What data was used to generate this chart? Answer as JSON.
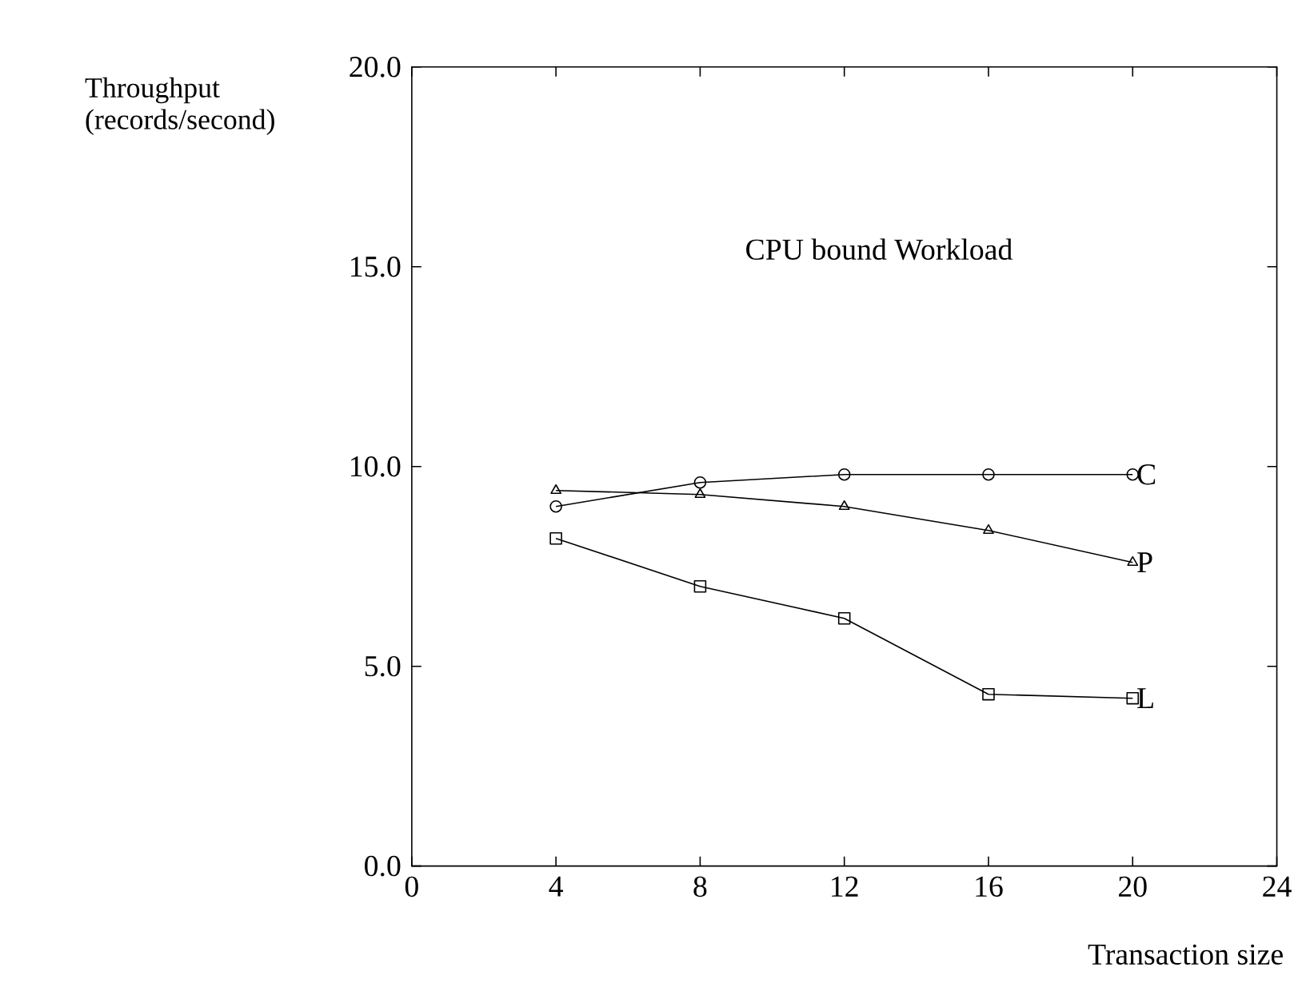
{
  "chart_data": {
    "type": "line",
    "title": "CPU bound Workload",
    "xlabel": "Transaction size",
    "ylabel": "Throughput (records/second)",
    "x": [
      4,
      8,
      12,
      16,
      20
    ],
    "xlim": [
      0,
      24
    ],
    "xticks": [
      0,
      4,
      8,
      12,
      16,
      20,
      24
    ],
    "ylim": [
      0,
      20
    ],
    "yticks": [
      {
        "value": 0,
        "label": "0.0"
      },
      {
        "value": 5,
        "label": "5.0"
      },
      {
        "value": 10,
        "label": "10.0"
      },
      {
        "value": 15,
        "label": "15.0"
      },
      {
        "value": 20,
        "label": "20.0"
      }
    ],
    "line_style": "solid",
    "series": [
      {
        "name": "C",
        "color": "#000000",
        "marker": "circle",
        "values": [
          9.0,
          9.6,
          9.8,
          9.8,
          9.8
        ]
      },
      {
        "name": "P",
        "color": "#000000",
        "marker": "triangle",
        "values": [
          9.4,
          9.3,
          9.0,
          8.4,
          7.6
        ]
      },
      {
        "name": "L",
        "color": "#000000",
        "marker": "square",
        "values": [
          8.2,
          7.0,
          6.2,
          4.3,
          4.2
        ]
      }
    ]
  }
}
